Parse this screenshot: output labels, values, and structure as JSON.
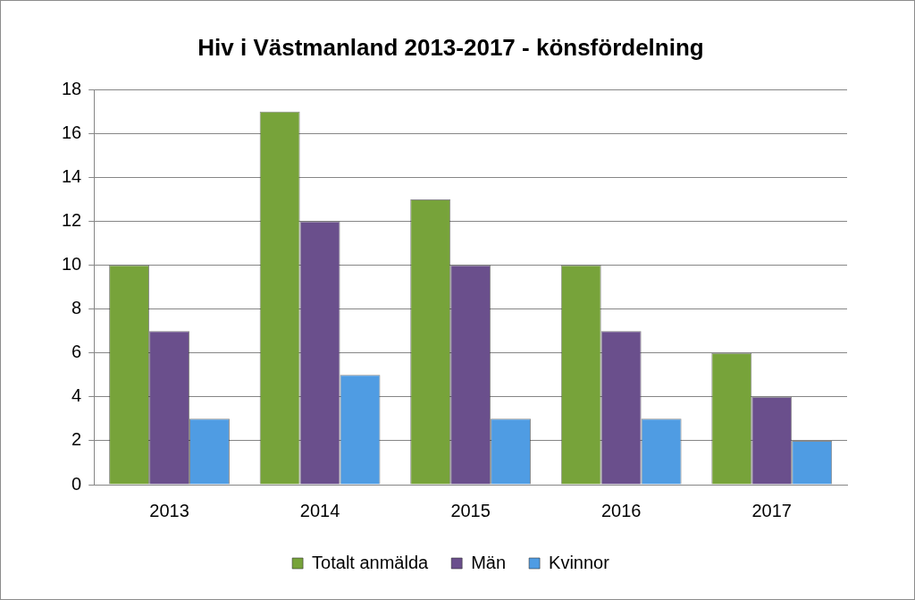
{
  "chart_data": {
    "type": "bar",
    "title": "Hiv i Västmanland 2013-2017 - könsfördelning",
    "categories": [
      "2013",
      "2014",
      "2015",
      "2016",
      "2017"
    ],
    "series": [
      {
        "name": "Totalt anmälda",
        "color": "#77a33a",
        "values": [
          10,
          17,
          13,
          10,
          6
        ]
      },
      {
        "name": "Män",
        "color": "#6a4f8c",
        "values": [
          7,
          12,
          10,
          7,
          4
        ]
      },
      {
        "name": "Kvinnor",
        "color": "#4f9ce3",
        "values": [
          3,
          5,
          3,
          3,
          2
        ]
      }
    ],
    "ylim": [
      0,
      18
    ],
    "yticks": [
      0,
      2,
      4,
      6,
      8,
      10,
      12,
      14,
      16,
      18
    ],
    "grid": true,
    "legend": "bottom"
  }
}
